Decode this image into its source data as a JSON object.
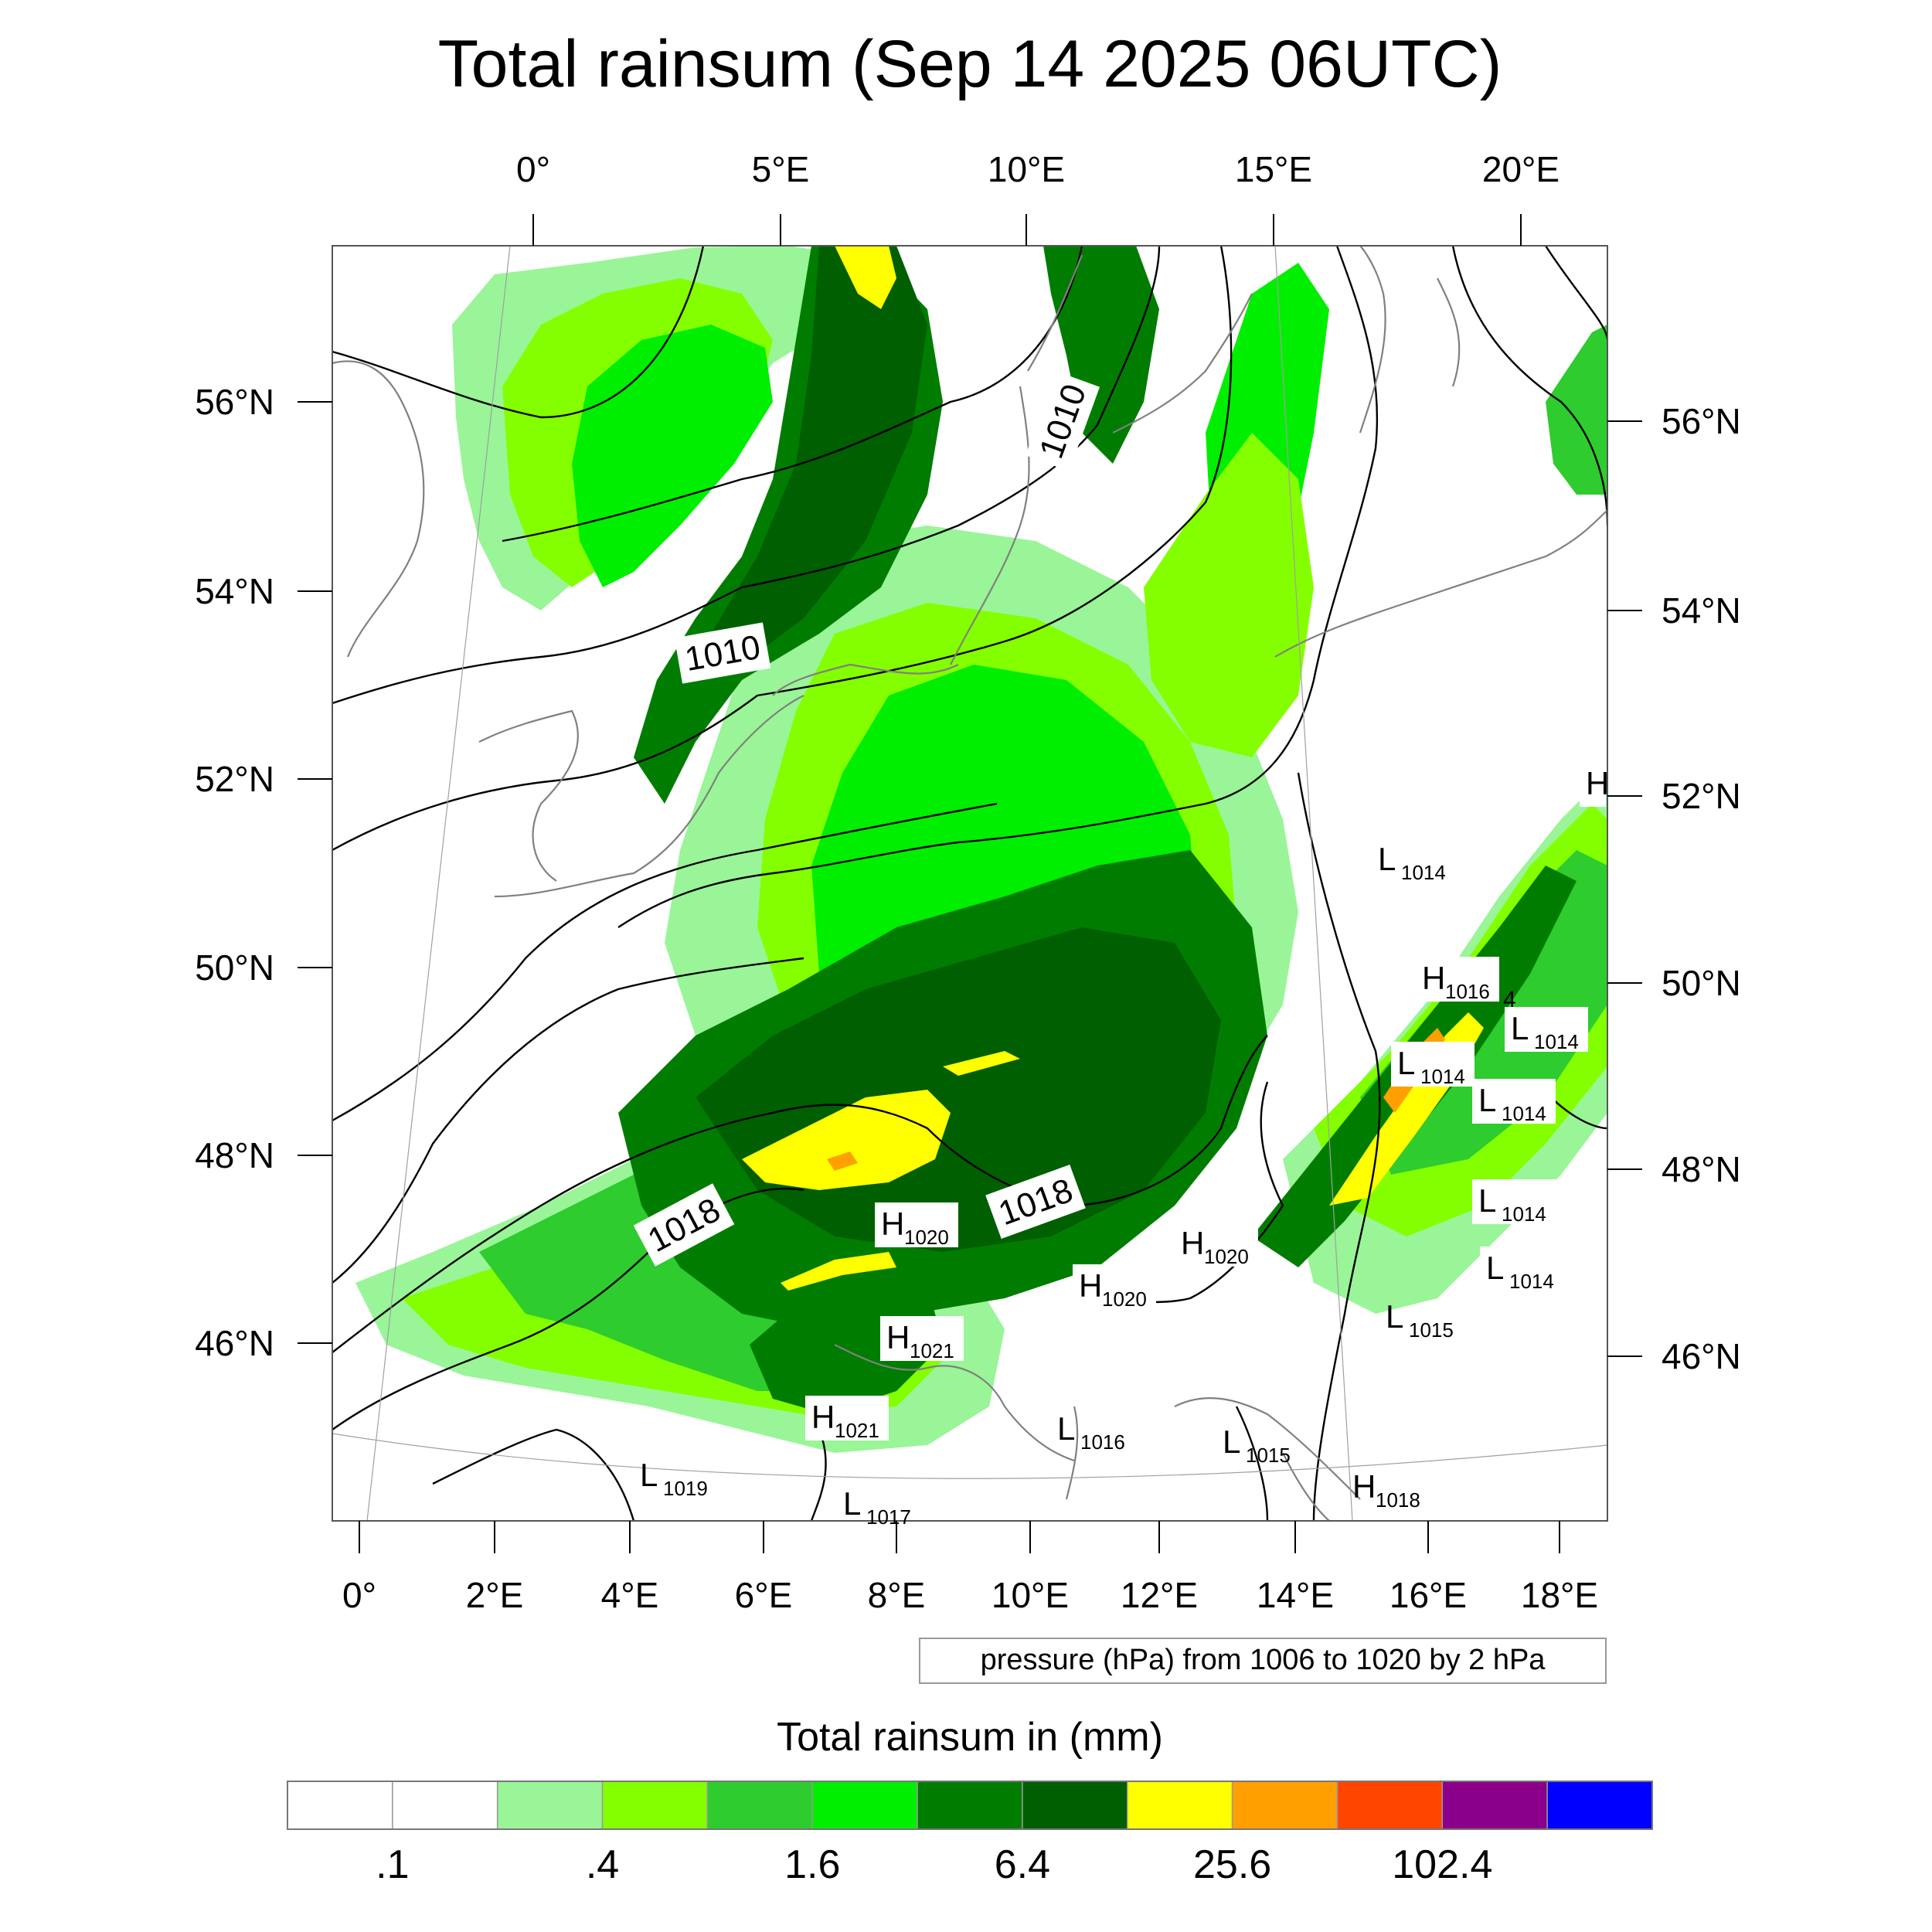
{
  "title": "Total rainsum (Sep 14 2025 06UTC)",
  "top_axis_labels": [
    "0°",
    "5°E",
    "10°E",
    "15°E",
    "20°E"
  ],
  "bottom_axis_labels": [
    "0°",
    "2°E",
    "4°E",
    "6°E",
    "8°E",
    "10°E",
    "12°E",
    "14°E",
    "16°E",
    "18°E"
  ],
  "left_axis_labels": [
    "56°N",
    "54°N",
    "52°N",
    "50°N",
    "48°N",
    "46°N"
  ],
  "right_axis_labels": [
    "56°N",
    "54°N",
    "52°N",
    "50°N",
    "48°N",
    "46°N"
  ],
  "isobar_labels": [
    "1010",
    "1010",
    "1018",
    "1018"
  ],
  "pressure_centers": [
    {
      "letter": "H",
      "value": "1020"
    },
    {
      "letter": "H",
      "value": "1020"
    },
    {
      "letter": "H",
      "value": "1020"
    },
    {
      "letter": "H",
      "value": "1021"
    },
    {
      "letter": "H",
      "value": "1021"
    },
    {
      "letter": "H",
      "value": "1016"
    },
    {
      "letter": "H",
      "value": "1018"
    },
    {
      "letter": "H",
      "value": ""
    },
    {
      "letter": "L",
      "value": "1014"
    },
    {
      "letter": "L",
      "value": "1014"
    },
    {
      "letter": "L",
      "value": "1014"
    },
    {
      "letter": "L",
      "value": "1014"
    },
    {
      "letter": "L",
      "value": "1014"
    },
    {
      "letter": "L",
      "value": "1014"
    },
    {
      "letter": "L",
      "value": "1015"
    },
    {
      "letter": "L",
      "value": "1015"
    },
    {
      "letter": "L",
      "value": "1016"
    },
    {
      "letter": "L",
      "value": "1019"
    },
    {
      "letter": "L",
      "value": "1017"
    }
  ],
  "stray_label": "4",
  "contour_note": "pressure (hPa) from 1006 to 1020 by 2 hPa",
  "colorbar": {
    "title": "Total rainsum in (mm)",
    "tick_labels": [
      ".1",
      ".4",
      "1.6",
      "6.4",
      "25.6",
      "102.4"
    ],
    "colors": [
      "#ffffff",
      "#ffffff",
      "#99f597",
      "#84ff00",
      "#2ecc2e",
      "#00ee00",
      "#007d00",
      "#005f00",
      "#ffff00",
      "#ffa000",
      "#ff4500",
      "#8b008b",
      "#0000ff"
    ]
  },
  "rain_colors": {
    "light": "#99f597",
    "lime": "#84ff00",
    "medium": "#2ecc2e",
    "bright": "#00ee00",
    "dark": "#007d00",
    "darker": "#005f00",
    "yellow": "#ffff00",
    "orange": "#ffa000",
    "red": "#ff4500"
  }
}
